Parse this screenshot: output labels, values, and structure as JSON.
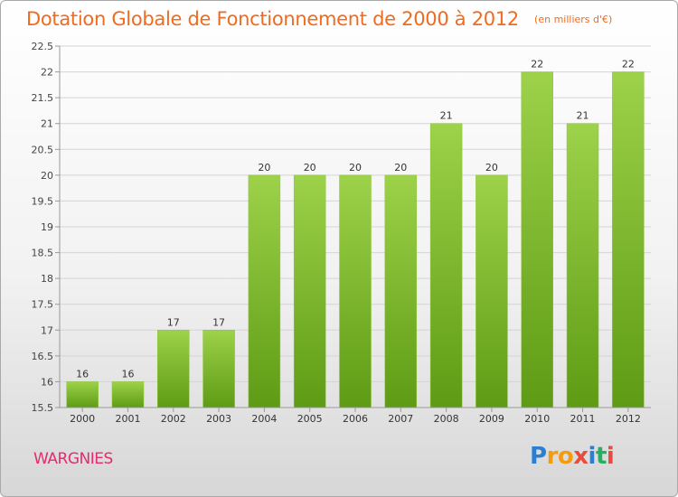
{
  "title": "Dotation Globale de Fonctionnement de 2000 à 2012",
  "subtitle": "(en milliers d'€)",
  "commune": "WARGNIES",
  "logo_text": "Proxiti",
  "colors": {
    "title": "#f06b1e",
    "commune": "#e52b6e",
    "bar_light": "#9dd24a",
    "bar_dark": "#5e9b14",
    "grid": "#d4d4d4",
    "logo": [
      "#2b7fd1",
      "#f39c12",
      "#f39c12",
      "#e74c3c",
      "#2b7fd1",
      "#27ae60",
      "#e74c3c"
    ]
  },
  "chart_data": {
    "type": "bar",
    "categories": [
      "2000",
      "2001",
      "2002",
      "2003",
      "2004",
      "2005",
      "2006",
      "2007",
      "2008",
      "2009",
      "2010",
      "2011",
      "2012"
    ],
    "values": [
      16,
      16,
      17,
      17,
      20,
      20,
      20,
      20,
      21,
      20,
      22,
      21,
      22
    ],
    "data_labels": [
      "16",
      "16",
      "17",
      "17",
      "20",
      "20",
      "20",
      "20",
      "21",
      "20",
      "22",
      "21",
      "22"
    ],
    "ylim": [
      15.5,
      22.5
    ],
    "yticks": [
      "15.5",
      "16",
      "16.5",
      "17",
      "17.5",
      "18",
      "18.5",
      "19",
      "19.5",
      "20",
      "20.5",
      "21",
      "21.5",
      "22",
      "22.5"
    ],
    "grid": true,
    "legend": "none",
    "xlabel": "",
    "ylabel": ""
  }
}
